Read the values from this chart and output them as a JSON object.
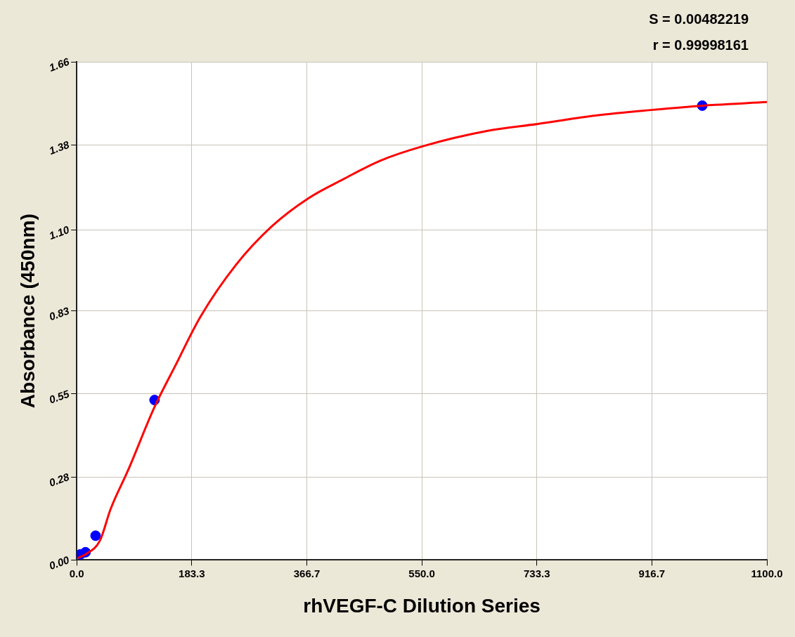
{
  "chart_data": {
    "type": "scatter",
    "xlabel": "rhVEGF-C Dilution Series",
    "ylabel": "Absorbance (450nm)",
    "annotations": [
      "S = 0.00482219",
      "r = 0.99998161"
    ],
    "xlim": [
      0,
      1100
    ],
    "ylim": [
      0,
      1.66
    ],
    "xticks": [
      {
        "value": 0,
        "label": "0.0"
      },
      {
        "value": 183.33,
        "label": "183.3"
      },
      {
        "value": 366.67,
        "label": "366.7"
      },
      {
        "value": 550,
        "label": "550.0"
      },
      {
        "value": 733.33,
        "label": "733.3"
      },
      {
        "value": 916.67,
        "label": "916.7"
      },
      {
        "value": 1100,
        "label": "1100.0"
      }
    ],
    "yticks": [
      {
        "value": 0,
        "label": "0.00"
      },
      {
        "value": 0.2767,
        "label": "0.28"
      },
      {
        "value": 0.5533,
        "label": "0.55"
      },
      {
        "value": 0.83,
        "label": "0.83"
      },
      {
        "value": 1.1,
        "label": "1.10"
      },
      {
        "value": 1.3833,
        "label": "1.38"
      },
      {
        "value": 1.66,
        "label": "1.66"
      }
    ],
    "grid": true,
    "legend": false,
    "series": [
      {
        "type": "line",
        "color": "#ff0000",
        "marker": "none",
        "line_style": "solid",
        "x": [
          2,
          14,
          37,
          54,
          82,
          124,
          157,
          197,
          254,
          311,
          369,
          426,
          483,
          552,
          655,
          735,
          827,
          918,
          998,
          1100
        ],
        "values": [
          0.007,
          0.019,
          0.065,
          0.17,
          0.3,
          0.51,
          0.647,
          0.81,
          0.984,
          1.112,
          1.205,
          1.27,
          1.33,
          1.379,
          1.43,
          1.453,
          1.481,
          1.5,
          1.514,
          1.526
        ]
      },
      {
        "color": "#0000ff",
        "marker": "circle",
        "x": [
          6,
          14,
          30,
          124,
          997
        ],
        "values": [
          0.019,
          0.026,
          0.081,
          0.533,
          1.514
        ]
      }
    ]
  }
}
